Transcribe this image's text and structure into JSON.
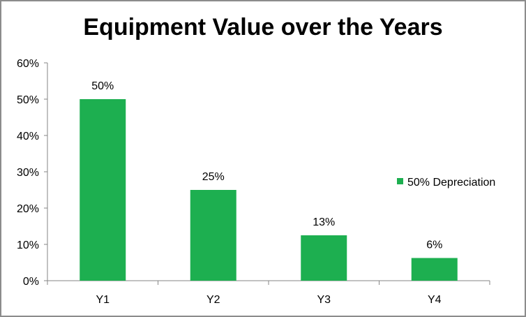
{
  "chart_data": {
    "type": "bar",
    "title": "Equipment Value over the Years",
    "categories": [
      "Y1",
      "Y2",
      "Y3",
      "Y4"
    ],
    "series": [
      {
        "name": "50% Depreciation",
        "values": [
          50,
          25,
          12.5,
          6.25
        ],
        "data_labels": [
          "50%",
          "25%",
          "13%",
          "6%"
        ],
        "color": "#1daf50"
      }
    ],
    "xlabel": "",
    "ylabel": "",
    "ylim": [
      0,
      60
    ],
    "yticks": [
      0,
      10,
      20,
      30,
      40,
      50,
      60
    ],
    "ytick_labels": [
      "0%",
      "10%",
      "20%",
      "30%",
      "40%",
      "50%",
      "60%"
    ],
    "grid": false,
    "legend_position": "right"
  }
}
